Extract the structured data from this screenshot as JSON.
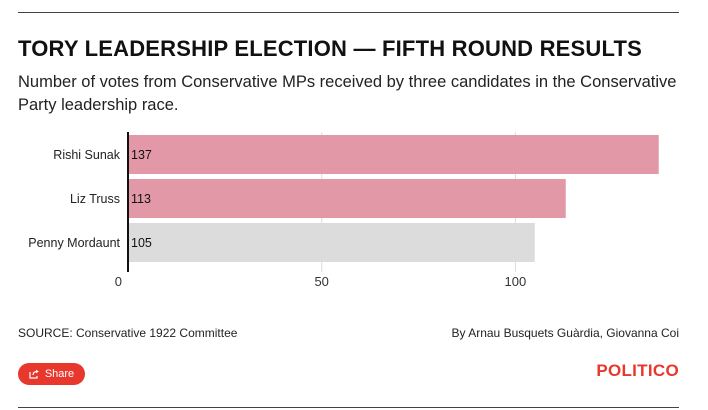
{
  "header": {
    "title": "TORY LEADERSHIP ELECTION — FIFTH ROUND RESULTS",
    "subtitle": "Number of votes from Conservative MPs received by three candidates in the Conservative Party leadership race."
  },
  "chart_data": {
    "type": "bar",
    "orientation": "horizontal",
    "title": "TORY LEADERSHIP ELECTION — FIFTH ROUND RESULTS",
    "categories": [
      "Rishi Sunak",
      "Liz Truss",
      "Penny Mordaunt"
    ],
    "values": [
      137,
      113,
      105
    ],
    "data_labels": [
      "137",
      "113",
      "105"
    ],
    "bar_colors": [
      "#e398a7",
      "#e398a7",
      "#dcdcdc"
    ],
    "xlim": [
      0,
      140
    ],
    "xticks": [
      0,
      50,
      100
    ],
    "xtick_labels": [
      "0",
      "50",
      "100"
    ],
    "grid": true,
    "grid_color": "#dcdcdc",
    "legend": "none"
  },
  "footer": {
    "source": "SOURCE: Conservative 1922 Committee",
    "byline": "By Arnau Busquets Guàrdia, Giovanna Coi",
    "share_label": "Share",
    "brand": "POLITICO",
    "share_icon": "share-icon",
    "accent_color": "#e8372d"
  }
}
